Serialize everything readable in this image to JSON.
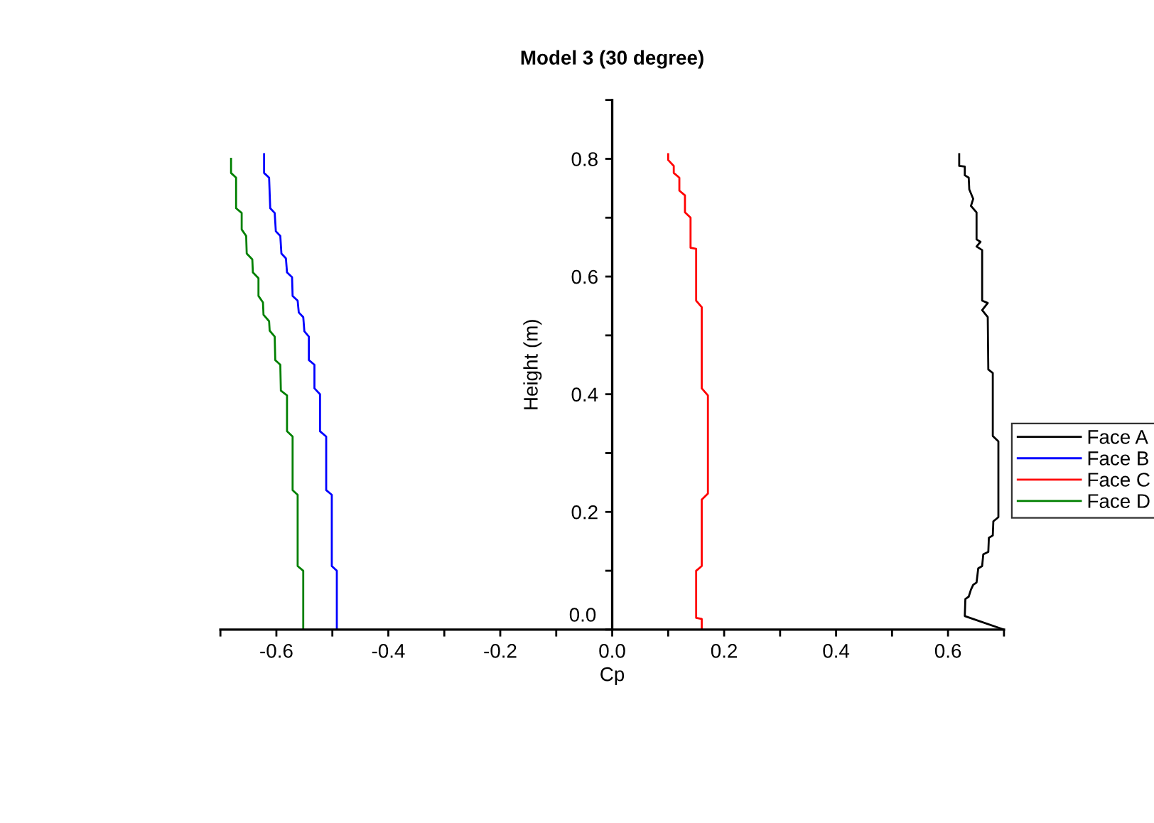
{
  "chart_data": {
    "type": "line",
    "title": "Model 3 (30 degree)",
    "xlabel": "Cp",
    "ylabel": "Height (m)",
    "xlim": [
      -0.7,
      0.7
    ],
    "ylim": [
      0,
      0.9
    ],
    "xticks": [
      {
        "value": -0.7,
        "label": null
      },
      -0.6,
      {
        "value": -0.5,
        "label": null
      },
      -0.4,
      {
        "value": -0.3,
        "label": null
      },
      -0.2,
      {
        "value": -0.1,
        "label": null
      },
      {
        "value": 0,
        "label": "0.0"
      },
      {
        "value": 0.1,
        "label": null
      },
      0.2,
      {
        "value": 0.3,
        "label": null
      },
      0.4,
      {
        "value": 0.5,
        "label": null
      },
      0.6,
      {
        "value": 0.7,
        "label": null
      }
    ],
    "yticks": [
      {
        "value": 0,
        "label": "0.0"
      },
      {
        "value": 0.1,
        "label": null
      },
      0.2,
      {
        "value": 0.3,
        "label": null
      },
      0.4,
      {
        "value": 0.5,
        "label": null
      },
      0.6,
      {
        "value": 0.7,
        "label": null
      },
      0.8,
      {
        "value": 0.9,
        "label": null
      }
    ],
    "grid": false,
    "legend": "right",
    "marker": "none",
    "line_style": "solid",
    "series": [
      {
        "name": "Face A",
        "color": "#000000",
        "x": [
          0.62,
          0.62,
          0.63,
          0.63,
          0.637,
          0.638,
          0.645,
          0.641,
          0.651,
          0.651,
          0.658,
          0.651,
          0.661,
          0.661,
          0.671,
          0.661,
          0.671,
          0.672,
          0.68,
          0.68,
          0.69,
          0.69,
          0.681,
          0.68,
          0.673,
          0.672,
          0.663,
          0.661,
          0.654,
          0.651,
          0.645,
          0.641,
          0.637,
          0.631,
          0.63,
          0.7
        ],
        "values": [
          0.808,
          0.788,
          0.787,
          0.772,
          0.768,
          0.748,
          0.732,
          0.72,
          0.709,
          0.663,
          0.659,
          0.651,
          0.645,
          0.559,
          0.555,
          0.543,
          0.531,
          0.442,
          0.436,
          0.329,
          0.32,
          0.191,
          0.184,
          0.16,
          0.156,
          0.132,
          0.128,
          0.108,
          0.104,
          0.08,
          0.076,
          0.068,
          0.056,
          0.052,
          0.023,
          0.0
        ]
      },
      {
        "name": "Face B",
        "color": "#0000ff",
        "x": [
          -0.622,
          -0.622,
          -0.613,
          -0.611,
          -0.603,
          -0.601,
          -0.593,
          -0.591,
          -0.583,
          -0.581,
          -0.572,
          -0.571,
          -0.562,
          -0.56,
          -0.552,
          -0.55,
          -0.542,
          -0.542,
          -0.532,
          -0.532,
          -0.522,
          -0.522,
          -0.511,
          -0.511,
          -0.501,
          -0.501,
          -0.492,
          -0.492
        ],
        "values": [
          0.808,
          0.776,
          0.768,
          0.716,
          0.708,
          0.677,
          0.669,
          0.639,
          0.631,
          0.607,
          0.599,
          0.567,
          0.559,
          0.539,
          0.531,
          0.507,
          0.498,
          0.458,
          0.45,
          0.41,
          0.4,
          0.337,
          0.328,
          0.237,
          0.229,
          0.108,
          0.1,
          0.0
        ]
      },
      {
        "name": "Face C",
        "color": "#ff0000",
        "x": [
          0.1,
          0.1,
          0.11,
          0.11,
          0.12,
          0.12,
          0.13,
          0.13,
          0.14,
          0.14,
          0.15,
          0.15,
          0.16,
          0.16,
          0.171,
          0.171,
          0.16,
          0.16,
          0.15,
          0.15,
          0.16,
          0.16
        ],
        "values": [
          0.808,
          0.798,
          0.788,
          0.776,
          0.768,
          0.746,
          0.738,
          0.709,
          0.7,
          0.649,
          0.647,
          0.559,
          0.548,
          0.41,
          0.398,
          0.231,
          0.221,
          0.108,
          0.1,
          0.02,
          0.018,
          0.0
        ]
      },
      {
        "name": "Face D",
        "color": "#008000",
        "x": [
          -0.681,
          -0.681,
          -0.672,
          -0.672,
          -0.662,
          -0.662,
          -0.654,
          -0.653,
          -0.643,
          -0.642,
          -0.632,
          -0.632,
          -0.624,
          -0.623,
          -0.613,
          -0.612,
          -0.603,
          -0.602,
          -0.593,
          -0.592,
          -0.581,
          -0.581,
          -0.571,
          -0.571,
          -0.562,
          -0.562,
          -0.552,
          -0.552
        ],
        "values": [
          0.8,
          0.776,
          0.768,
          0.716,
          0.708,
          0.68,
          0.669,
          0.639,
          0.629,
          0.607,
          0.597,
          0.567,
          0.556,
          0.535,
          0.524,
          0.508,
          0.498,
          0.458,
          0.45,
          0.406,
          0.398,
          0.337,
          0.328,
          0.237,
          0.229,
          0.108,
          0.1,
          0.0
        ]
      }
    ]
  }
}
